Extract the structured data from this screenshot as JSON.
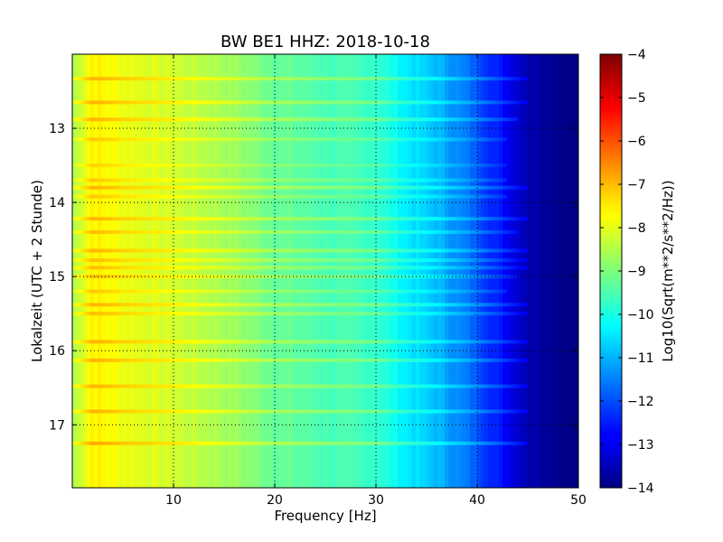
{
  "chart_data": {
    "type": "heatmap",
    "title": "BW BE1 HHZ: 2018-10-18",
    "xlabel": "Frequency [Hz]",
    "ylabel": "Lokalzeit (UTC + 2 Stunde)",
    "xlim": [
      0,
      50
    ],
    "ylim": [
      17.85,
      12.0
    ],
    "xticks": [
      10,
      20,
      30,
      40,
      50
    ],
    "yticks": [
      13,
      14,
      15,
      16,
      17
    ],
    "grid": true,
    "grid_style": "dotted",
    "colorbar": {
      "label": "Log10(Sqrt(m**2/s**2/Hz))",
      "range": [
        -14,
        -4
      ],
      "ticks": [
        -4,
        -5,
        -6,
        -7,
        -8,
        -9,
        -10,
        -11,
        -12,
        -13,
        -14
      ],
      "colormap": "jet",
      "placement": "right"
    },
    "levels_by_frequency": [
      {
        "hz": 0,
        "value": -8.6
      },
      {
        "hz": 2,
        "value": -7.6
      },
      {
        "hz": 5,
        "value": -7.9
      },
      {
        "hz": 10,
        "value": -8.2
      },
      {
        "hz": 15,
        "value": -8.6
      },
      {
        "hz": 20,
        "value": -9.2
      },
      {
        "hz": 25,
        "value": -9.5
      },
      {
        "hz": 30,
        "value": -9.7
      },
      {
        "hz": 33,
        "value": -10.4
      },
      {
        "hz": 36,
        "value": -10.9
      },
      {
        "hz": 39,
        "value": -11.6
      },
      {
        "hz": 42,
        "value": -12.5
      },
      {
        "hz": 45,
        "value": -13.5
      },
      {
        "hz": 50,
        "value": -14
      }
    ],
    "bands": [
      {
        "time": 12.33,
        "hz_max": 45,
        "delta": 0.6
      },
      {
        "time": 12.65,
        "hz_max": 45,
        "delta": 0.6
      },
      {
        "time": 12.88,
        "hz_max": 44,
        "delta": 0.6
      },
      {
        "time": 13.15,
        "hz_max": 43,
        "delta": 0.4
      },
      {
        "time": 13.5,
        "hz_max": 43,
        "delta": 0.3
      },
      {
        "time": 13.7,
        "hz_max": 43,
        "delta": 0.4
      },
      {
        "time": 13.8,
        "hz_max": 45,
        "delta": 0.6
      },
      {
        "time": 13.92,
        "hz_max": 43,
        "delta": 0.4
      },
      {
        "time": 14.22,
        "hz_max": 45,
        "delta": 0.6
      },
      {
        "time": 14.4,
        "hz_max": 44,
        "delta": 0.5
      },
      {
        "time": 14.65,
        "hz_max": 45,
        "delta": 0.6
      },
      {
        "time": 14.78,
        "hz_max": 45,
        "delta": 0.5
      },
      {
        "time": 14.88,
        "hz_max": 45,
        "delta": 0.5
      },
      {
        "time": 15.0,
        "hz_max": 44,
        "delta": 0.5
      },
      {
        "time": 15.2,
        "hz_max": 43,
        "delta": 0.4
      },
      {
        "time": 15.38,
        "hz_max": 45,
        "delta": 0.6
      },
      {
        "time": 15.5,
        "hz_max": 45,
        "delta": 0.5
      },
      {
        "time": 15.88,
        "hz_max": 45,
        "delta": 0.6
      },
      {
        "time": 16.13,
        "hz_max": 45,
        "delta": 0.6
      },
      {
        "time": 16.48,
        "hz_max": 45,
        "delta": 0.6
      },
      {
        "time": 16.82,
        "hz_max": 45,
        "delta": 0.6
      },
      {
        "time": 17.25,
        "hz_max": 45,
        "delta": 0.7
      }
    ]
  }
}
